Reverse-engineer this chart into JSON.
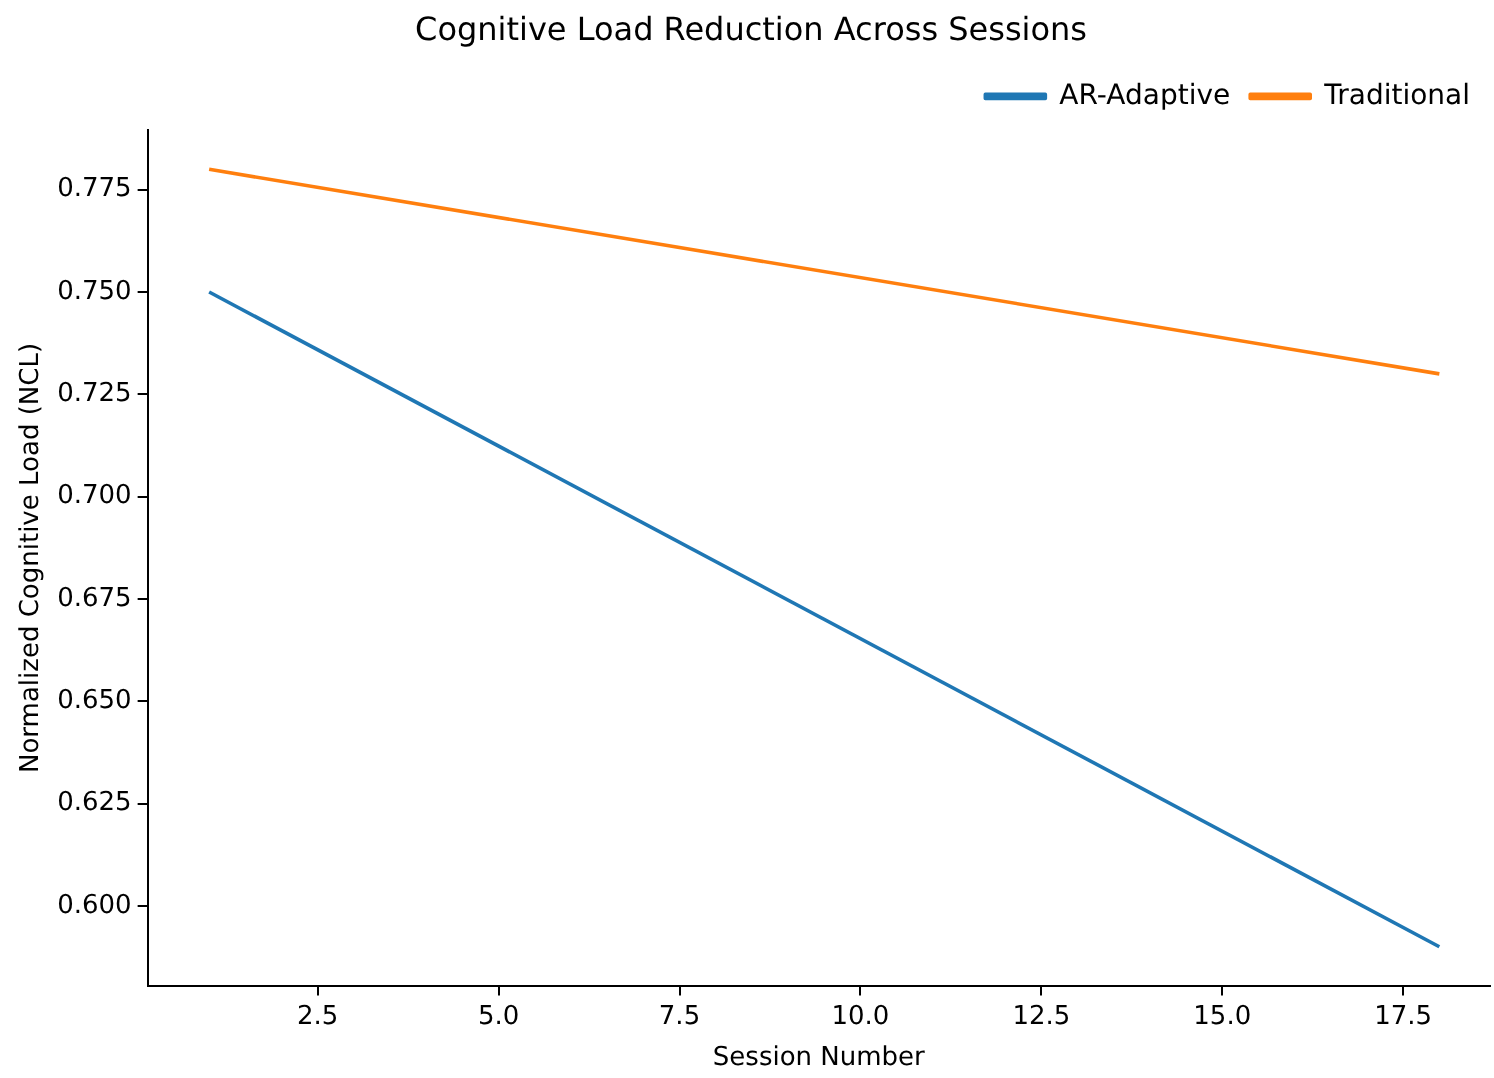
{
  "chart_data": {
    "type": "line",
    "title": "Cognitive Load Reduction Across Sessions",
    "xlabel": "Session Number",
    "ylabel": "Normalized Cognitive Load (NCL)",
    "x": [
      1,
      18
    ],
    "series": [
      {
        "name": "AR-Adaptive",
        "color": "#1f77b4",
        "values": [
          0.75,
          0.59
        ]
      },
      {
        "name": "Traditional",
        "color": "#ff7f0e",
        "values": [
          0.78,
          0.73
        ]
      }
    ],
    "xlim": [
      0.15,
      18.7
    ],
    "xticks": [
      {
        "value": 2.5,
        "label": "2.5"
      },
      {
        "value": 5,
        "label": "5.0"
      },
      {
        "value": 7.5,
        "label": "7.5"
      },
      {
        "value": 10,
        "label": "10.0"
      },
      {
        "value": 12.5,
        "label": "12.5"
      },
      {
        "value": 15,
        "label": "15.0"
      },
      {
        "value": 17.5,
        "label": "17.5"
      }
    ],
    "ylim": [
      0.5805,
      0.7895
    ],
    "yticks": [
      {
        "value": 0.6,
        "label": "0.600"
      },
      {
        "value": 0.625,
        "label": "0.625"
      },
      {
        "value": 0.65,
        "label": "0.650"
      },
      {
        "value": 0.675,
        "label": "0.675"
      },
      {
        "value": 0.7,
        "label": "0.700"
      },
      {
        "value": 0.725,
        "label": "0.725"
      },
      {
        "value": 0.75,
        "label": "0.750"
      },
      {
        "value": 0.775,
        "label": "0.775"
      }
    ],
    "grid": false,
    "legend": "top right",
    "marker": "none",
    "line_style": "solid"
  }
}
